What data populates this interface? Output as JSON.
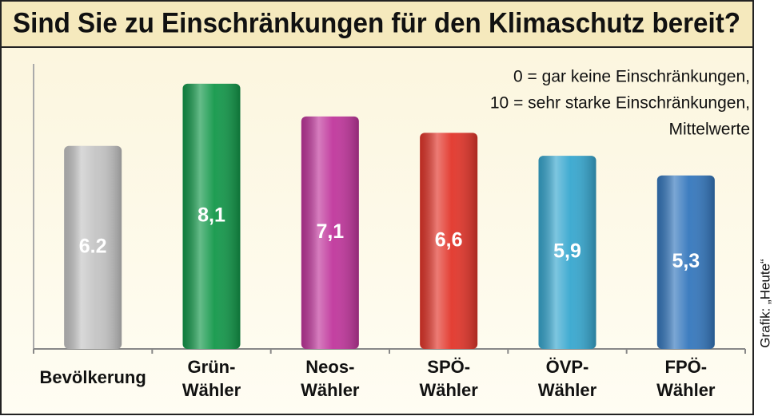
{
  "chart_data": {
    "type": "bar",
    "title": "Sind Sie zu Einschränkungen für den Klimaschutz bereit?",
    "note": [
      "0 =  gar keine Einschränkungen,",
      "10 = sehr starke Einschränkungen,",
      "Mittelwerte"
    ],
    "source": "Grafik: „Heute“",
    "categories": [
      "Bevölkerung",
      "Grün-\nWähler",
      "Neos-\nWähler",
      "SPÖ-\nWähler",
      "ÖVP-\nWähler",
      "FPÖ-\nWähler"
    ],
    "values": [
      6.2,
      8.1,
      7.1,
      6.6,
      5.9,
      5.3
    ],
    "value_labels": [
      "6.2",
      "8,1",
      "7,1",
      "6,6",
      "5,9",
      "5,3"
    ],
    "colors": [
      "#c4c4c4",
      "#13984a",
      "#c0369c",
      "#e2352a",
      "#37a7cf",
      "#3477bd"
    ],
    "ylim": [
      0,
      10
    ]
  }
}
